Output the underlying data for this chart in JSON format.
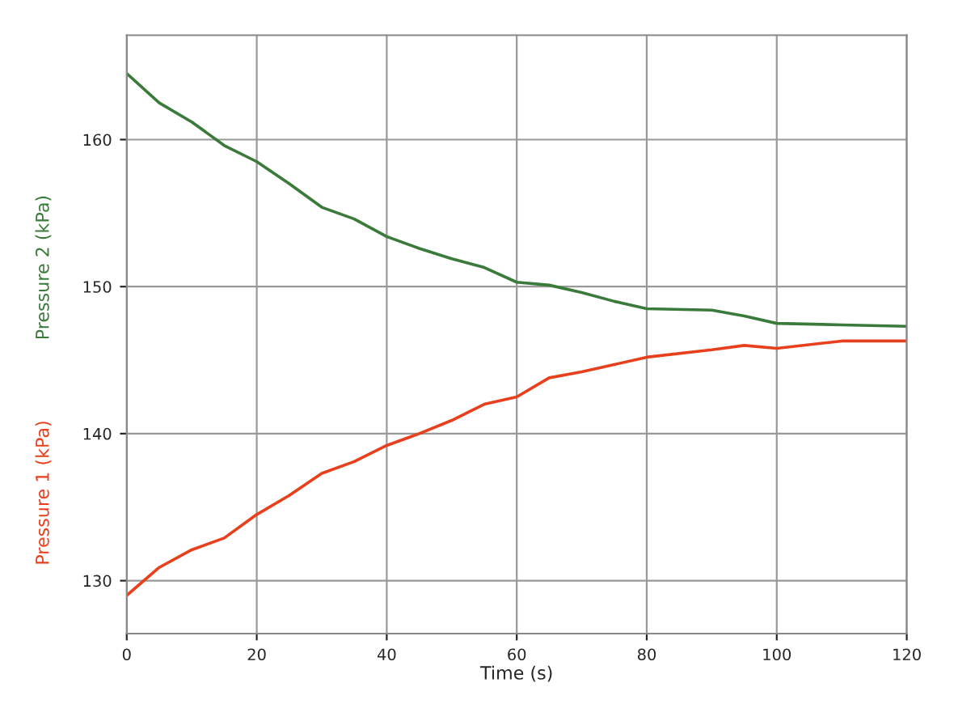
{
  "chart_data": {
    "type": "line",
    "xlabel": "Time (s)",
    "x": [
      0,
      5,
      10,
      15,
      20,
      25,
      30,
      35,
      40,
      45,
      50,
      55,
      60,
      65,
      70,
      75,
      80,
      90,
      95,
      100,
      110,
      120
    ],
    "series": [
      {
        "name": "Pressure 1 (kPa)",
        "color": "#e8401c",
        "values": [
          129.0,
          130.9,
          132.1,
          132.9,
          134.5,
          135.8,
          137.3,
          138.1,
          139.2,
          140.0,
          140.9,
          142.0,
          142.5,
          143.8,
          144.2,
          144.7,
          145.2,
          145.7,
          146.0,
          145.8,
          146.3,
          146.3
        ]
      },
      {
        "name": "Pressure 2 (kPa)",
        "color": "#3a7a3a",
        "values": [
          164.5,
          162.5,
          161.2,
          159.6,
          158.5,
          157.0,
          155.4,
          154.6,
          153.4,
          152.6,
          151.9,
          151.3,
          150.3,
          150.1,
          149.6,
          149.0,
          148.5,
          148.4,
          148.0,
          147.5,
          147.4,
          147.3
        ]
      }
    ],
    "xlim": [
      0,
      120
    ],
    "xticks": [
      0,
      20,
      40,
      60,
      80,
      100,
      120
    ],
    "ylim": [
      126.4,
      167.1
    ],
    "yticks": [
      130,
      140,
      150,
      160
    ],
    "grid": true,
    "line_style": "solid"
  }
}
